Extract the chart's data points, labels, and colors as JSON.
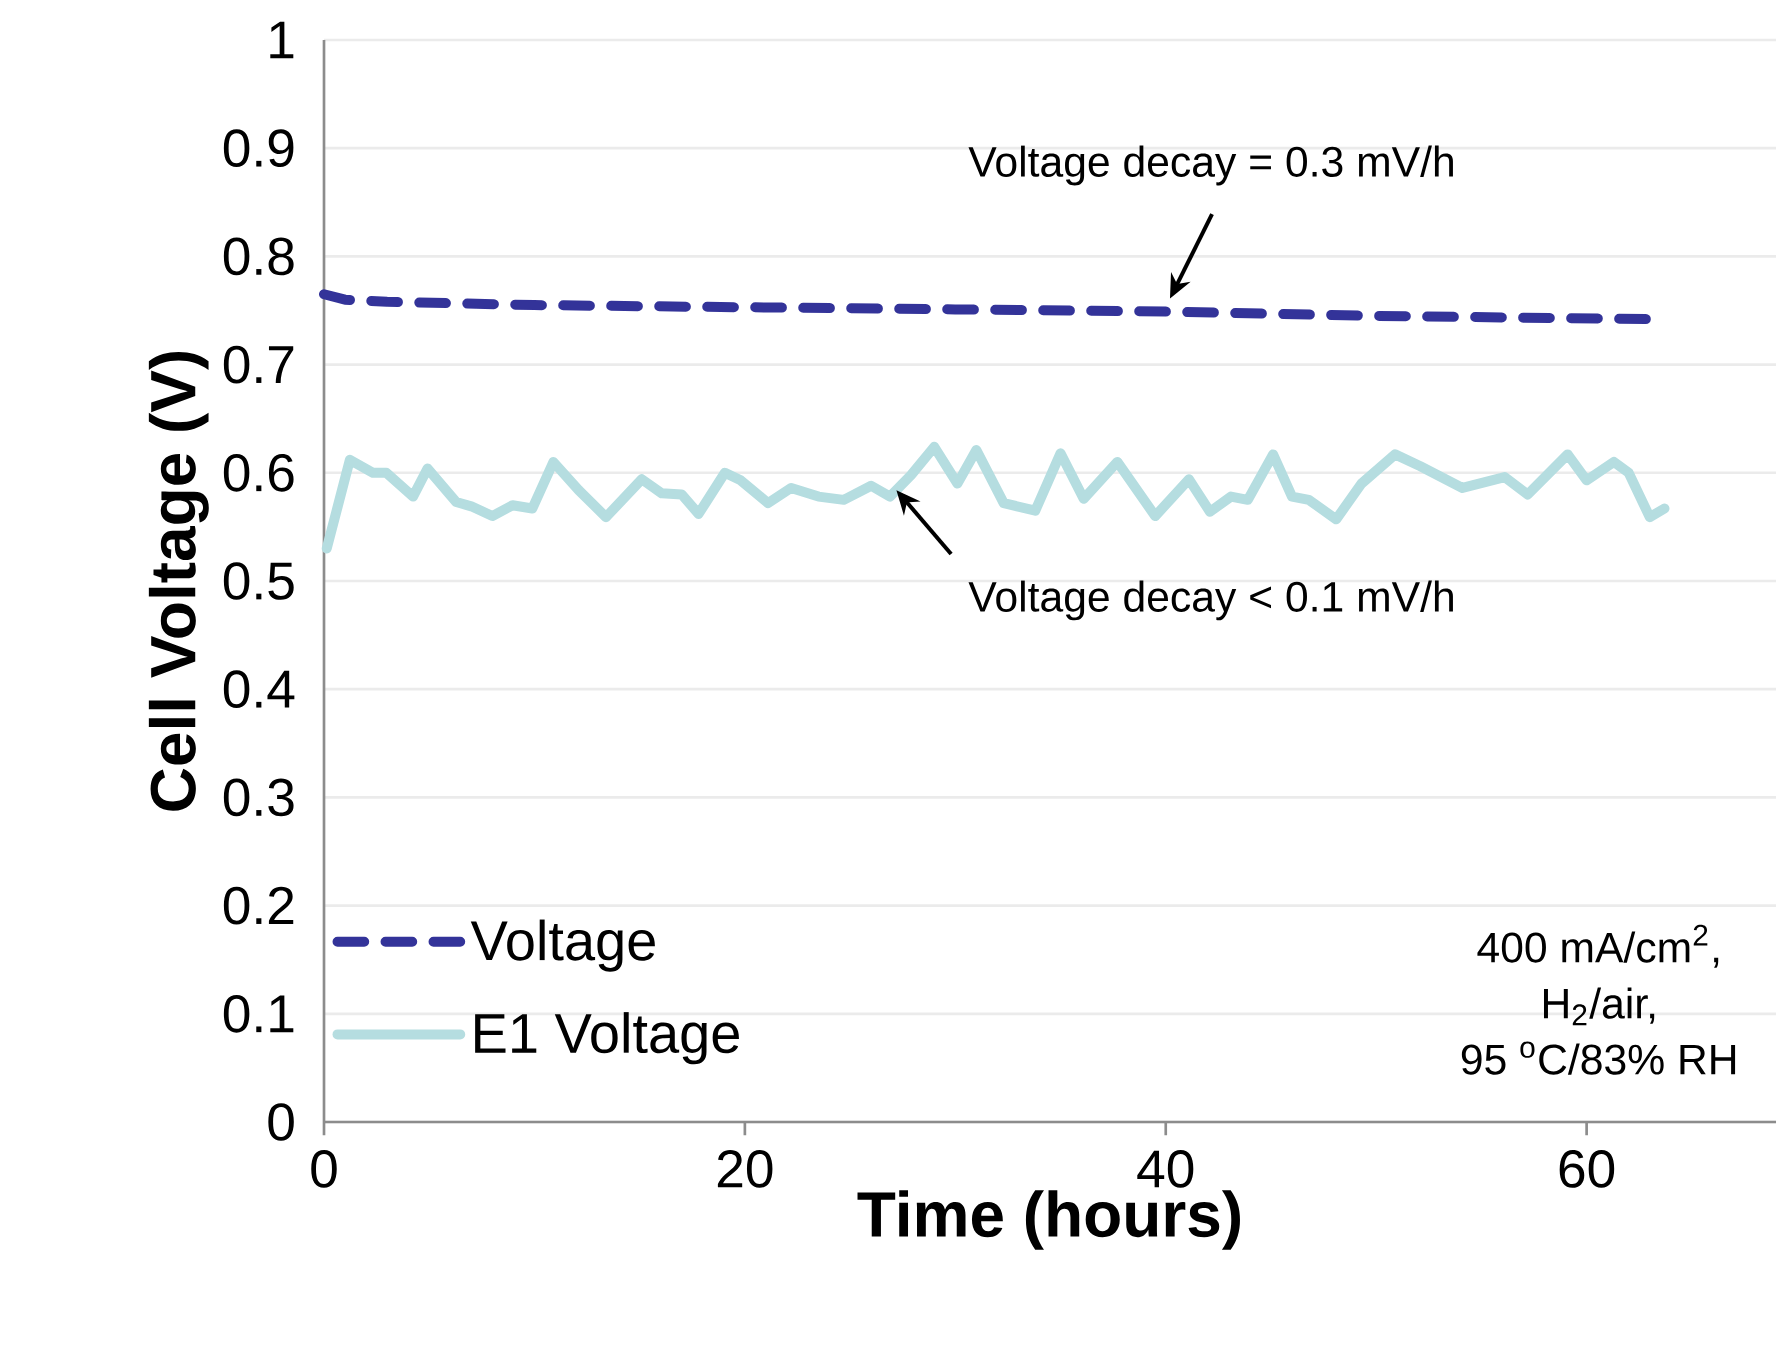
{
  "chart_data": {
    "type": "line",
    "xlabel": "Time (hours)",
    "ylabel": "Cell Voltage (V)",
    "xlim": [
      0,
      69
    ],
    "xticks": [
      0,
      20,
      40,
      60
    ],
    "ylim": [
      0,
      1
    ],
    "yticks": [
      0,
      0.1,
      0.2,
      0.3,
      0.4,
      0.5,
      0.6,
      0.7,
      0.8,
      0.9,
      1
    ],
    "grid": "y",
    "legend": "bottom left",
    "series": [
      {
        "name": "Voltage",
        "color": "#333399",
        "line_style": "dashed",
        "x": [
          0,
          1,
          3,
          10,
          20,
          30,
          40,
          50,
          63
        ],
        "values": [
          0.765,
          0.76,
          0.758,
          0.755,
          0.753,
          0.751,
          0.749,
          0.745,
          0.742
        ]
      },
      {
        "name": "E1 Voltage",
        "color": "#b5dde0",
        "line_style": "solid",
        "x": [
          0.13,
          1.23,
          2.33,
          2.96,
          4.23,
          4.92,
          6.28,
          7.0,
          8.0,
          8.96,
          9.9,
          10.9,
          12.1,
          13.4,
          15.1,
          16.05,
          17.0,
          17.8,
          19.05,
          19.8,
          21.1,
          22.2,
          23.5,
          24.7,
          26.0,
          26.9,
          27.9,
          29.0,
          30.1,
          31.0,
          32.3,
          33.8,
          35.0,
          36.1,
          37.7,
          39.5,
          41.1,
          42.1,
          43.1,
          43.9,
          45.1,
          46.0,
          46.8,
          48.1,
          49.3,
          50.9,
          52.1,
          54.1,
          56.1,
          57.2,
          59.1,
          60.0,
          61.3,
          62.0,
          63.0,
          63.7
        ],
        "values": [
          0.53,
          0.612,
          0.6,
          0.6,
          0.578,
          0.604,
          0.573,
          0.569,
          0.56,
          0.57,
          0.567,
          0.61,
          0.584,
          0.559,
          0.594,
          0.581,
          0.58,
          0.562,
          0.6,
          0.593,
          0.572,
          0.586,
          0.578,
          0.575,
          0.588,
          0.578,
          0.598,
          0.624,
          0.59,
          0.621,
          0.572,
          0.565,
          0.618,
          0.576,
          0.61,
          0.56,
          0.594,
          0.564,
          0.578,
          0.575,
          0.617,
          0.578,
          0.575,
          0.557,
          0.59,
          0.617,
          0.606,
          0.586,
          0.596,
          0.58,
          0.617,
          0.593,
          0.61,
          0.6,
          0.559,
          0.567
        ]
      }
    ],
    "annotations": [
      {
        "text": "Voltage decay = 0.3 mV/h",
        "x": 40,
        "y": 0.749
      },
      {
        "text": "Voltage decay < 0.1 mV/h",
        "x": 27,
        "y": 0.59
      },
      "400 mA/cm$^{2}$,",
      "H$_{2}$/air,",
      "95 $^{o}$C/83% RH"
    ]
  }
}
